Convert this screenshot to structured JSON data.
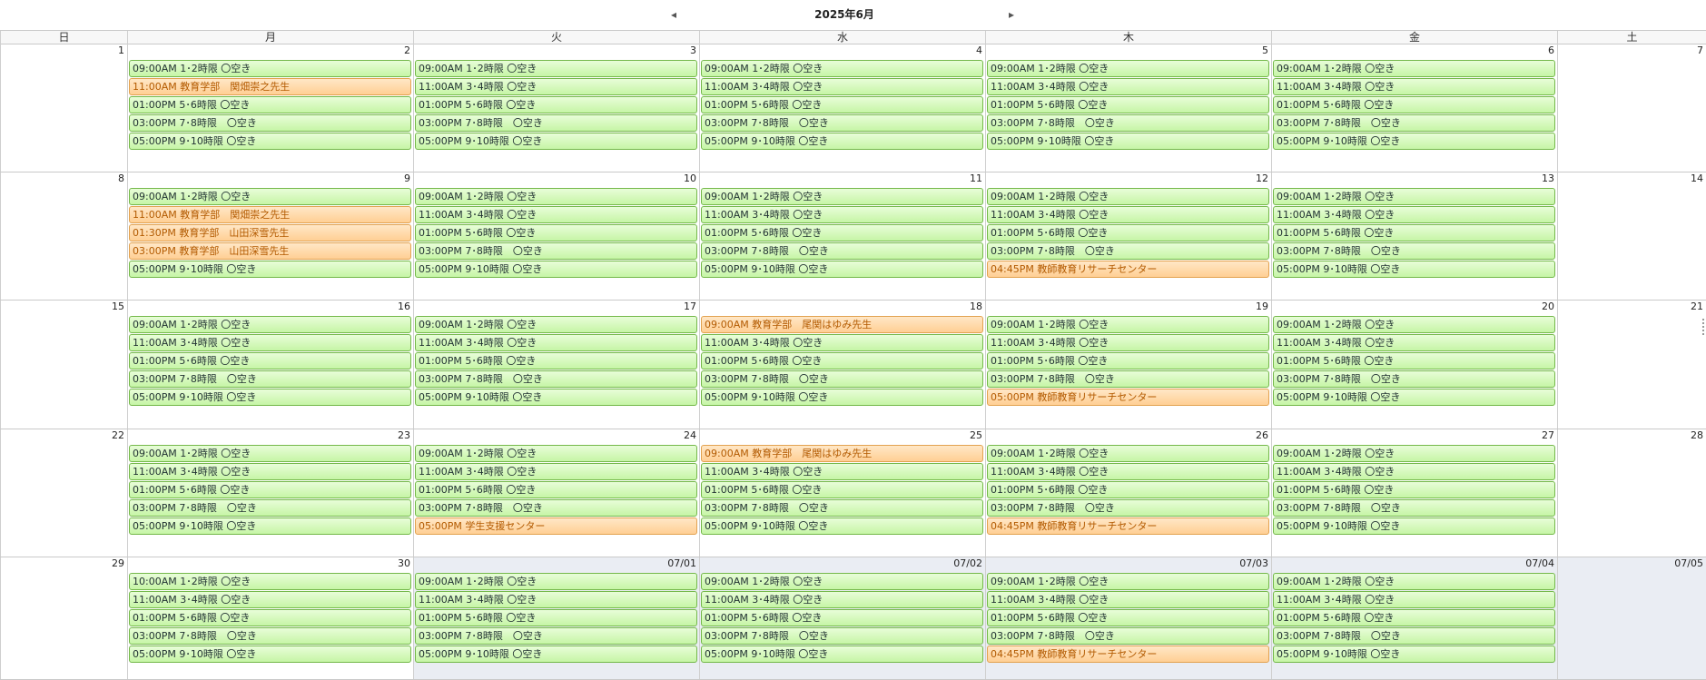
{
  "nav": {
    "title": "2025年6月",
    "prev_icon": "◂",
    "next_icon": "▸"
  },
  "weekdays": [
    "日",
    "月",
    "火",
    "水",
    "木",
    "金",
    "土"
  ],
  "weeks": [
    {
      "days": [
        {
          "num": "1",
          "events": []
        },
        {
          "num": "2",
          "events": [
            {
              "text": "09:00AM 1･2時限 〇空き",
              "color": "green"
            },
            {
              "text": "11:00AM 教育学部　関畑崇之先生",
              "color": "orange"
            },
            {
              "text": "01:00PM 5･6時限 〇空き",
              "color": "green"
            },
            {
              "text": "03:00PM 7･8時限　〇空き",
              "color": "green"
            },
            {
              "text": "05:00PM 9･10時限 〇空き",
              "color": "green"
            }
          ]
        },
        {
          "num": "3",
          "events": [
            {
              "text": "09:00AM 1･2時限 〇空き",
              "color": "green"
            },
            {
              "text": "11:00AM 3･4時限 〇空き",
              "color": "green"
            },
            {
              "text": "01:00PM 5･6時限 〇空き",
              "color": "green"
            },
            {
              "text": "03:00PM 7･8時限　〇空き",
              "color": "green"
            },
            {
              "text": "05:00PM 9･10時限 〇空き",
              "color": "green"
            }
          ]
        },
        {
          "num": "4",
          "events": [
            {
              "text": "09:00AM 1･2時限 〇空き",
              "color": "green"
            },
            {
              "text": "11:00AM 3･4時限 〇空き",
              "color": "green"
            },
            {
              "text": "01:00PM 5･6時限 〇空き",
              "color": "green"
            },
            {
              "text": "03:00PM 7･8時限　〇空き",
              "color": "green"
            },
            {
              "text": "05:00PM 9･10時限 〇空き",
              "color": "green"
            }
          ]
        },
        {
          "num": "5",
          "events": [
            {
              "text": "09:00AM 1･2時限 〇空き",
              "color": "green"
            },
            {
              "text": "11:00AM 3･4時限 〇空き",
              "color": "green"
            },
            {
              "text": "01:00PM 5･6時限 〇空き",
              "color": "green"
            },
            {
              "text": "03:00PM 7･8時限　〇空き",
              "color": "green"
            },
            {
              "text": "05:00PM 9･10時限 〇空き",
              "color": "green"
            }
          ]
        },
        {
          "num": "6",
          "events": [
            {
              "text": "09:00AM 1･2時限 〇空き",
              "color": "green"
            },
            {
              "text": "11:00AM 3･4時限 〇空き",
              "color": "green"
            },
            {
              "text": "01:00PM 5･6時限 〇空き",
              "color": "green"
            },
            {
              "text": "03:00PM 7･8時限　〇空き",
              "color": "green"
            },
            {
              "text": "05:00PM 9･10時限 〇空き",
              "color": "green"
            }
          ]
        },
        {
          "num": "7",
          "events": []
        }
      ]
    },
    {
      "days": [
        {
          "num": "8",
          "events": []
        },
        {
          "num": "9",
          "events": [
            {
              "text": "09:00AM 1･2時限 〇空き",
              "color": "green"
            },
            {
              "text": "11:00AM 教育学部　関畑崇之先生",
              "color": "orange"
            },
            {
              "text": "01:30PM 教育学部　山田深雪先生",
              "color": "orange"
            },
            {
              "text": "03:00PM 教育学部　山田深雪先生",
              "color": "orange"
            },
            {
              "text": "05:00PM 9･10時限 〇空き",
              "color": "green"
            }
          ]
        },
        {
          "num": "10",
          "events": [
            {
              "text": "09:00AM 1･2時限 〇空き",
              "color": "green"
            },
            {
              "text": "11:00AM 3･4時限 〇空き",
              "color": "green"
            },
            {
              "text": "01:00PM 5･6時限 〇空き",
              "color": "green"
            },
            {
              "text": "03:00PM 7･8時限　〇空き",
              "color": "green"
            },
            {
              "text": "05:00PM 9･10時限 〇空き",
              "color": "green"
            }
          ]
        },
        {
          "num": "11",
          "events": [
            {
              "text": "09:00AM 1･2時限 〇空き",
              "color": "green"
            },
            {
              "text": "11:00AM 3･4時限 〇空き",
              "color": "green"
            },
            {
              "text": "01:00PM 5･6時限 〇空き",
              "color": "green"
            },
            {
              "text": "03:00PM 7･8時限　〇空き",
              "color": "green"
            },
            {
              "text": "05:00PM 9･10時限 〇空き",
              "color": "green"
            }
          ]
        },
        {
          "num": "12",
          "events": [
            {
              "text": "09:00AM 1･2時限 〇空き",
              "color": "green"
            },
            {
              "text": "11:00AM 3･4時限 〇空き",
              "color": "green"
            },
            {
              "text": "01:00PM 5･6時限 〇空き",
              "color": "green"
            },
            {
              "text": "03:00PM 7･8時限　〇空き",
              "color": "green"
            },
            {
              "text": "04:45PM 教師教育リサーチセンター",
              "color": "orange"
            }
          ]
        },
        {
          "num": "13",
          "events": [
            {
              "text": "09:00AM 1･2時限 〇空き",
              "color": "green"
            },
            {
              "text": "11:00AM 3･4時限 〇空き",
              "color": "green"
            },
            {
              "text": "01:00PM 5･6時限 〇空き",
              "color": "green"
            },
            {
              "text": "03:00PM 7･8時限　〇空き",
              "color": "green"
            },
            {
              "text": "05:00PM 9･10時限 〇空き",
              "color": "green"
            }
          ]
        },
        {
          "num": "14",
          "events": []
        }
      ]
    },
    {
      "days": [
        {
          "num": "15",
          "events": []
        },
        {
          "num": "16",
          "events": [
            {
              "text": "09:00AM 1･2時限 〇空き",
              "color": "green"
            },
            {
              "text": "11:00AM 3･4時限 〇空き",
              "color": "green"
            },
            {
              "text": "01:00PM 5･6時限 〇空き",
              "color": "green"
            },
            {
              "text": "03:00PM 7･8時限　〇空き",
              "color": "green"
            },
            {
              "text": "05:00PM 9･10時限 〇空き",
              "color": "green"
            }
          ]
        },
        {
          "num": "17",
          "events": [
            {
              "text": "09:00AM 1･2時限 〇空き",
              "color": "green"
            },
            {
              "text": "11:00AM 3･4時限 〇空き",
              "color": "green"
            },
            {
              "text": "01:00PM 5･6時限 〇空き",
              "color": "green"
            },
            {
              "text": "03:00PM 7･8時限　〇空き",
              "color": "green"
            },
            {
              "text": "05:00PM 9･10時限 〇空き",
              "color": "green"
            }
          ]
        },
        {
          "num": "18",
          "events": [
            {
              "text": "09:00AM 教育学部　尾関はゆみ先生",
              "color": "orange"
            },
            {
              "text": "11:00AM 3･4時限 〇空き",
              "color": "green"
            },
            {
              "text": "01:00PM 5･6時限 〇空き",
              "color": "green"
            },
            {
              "text": "03:00PM 7･8時限　〇空き",
              "color": "green"
            },
            {
              "text": "05:00PM 9･10時限 〇空き",
              "color": "green"
            }
          ]
        },
        {
          "num": "19",
          "events": [
            {
              "text": "09:00AM 1･2時限 〇空き",
              "color": "green"
            },
            {
              "text": "11:00AM 3･4時限 〇空き",
              "color": "green"
            },
            {
              "text": "01:00PM 5･6時限 〇空き",
              "color": "green"
            },
            {
              "text": "03:00PM 7･8時限　〇空き",
              "color": "green"
            },
            {
              "text": "05:00PM 教師教育リサーチセンター",
              "color": "orange"
            }
          ]
        },
        {
          "num": "20",
          "events": [
            {
              "text": "09:00AM 1･2時限 〇空き",
              "color": "green"
            },
            {
              "text": "11:00AM 3･4時限 〇空き",
              "color": "green"
            },
            {
              "text": "01:00PM 5･6時限 〇空き",
              "color": "green"
            },
            {
              "text": "03:00PM 7･8時限　〇空き",
              "color": "green"
            },
            {
              "text": "05:00PM 9･10時限 〇空き",
              "color": "green"
            }
          ]
        },
        {
          "num": "21",
          "events": []
        }
      ]
    },
    {
      "days": [
        {
          "num": "22",
          "events": []
        },
        {
          "num": "23",
          "events": [
            {
              "text": "09:00AM 1･2時限 〇空き",
              "color": "green"
            },
            {
              "text": "11:00AM 3･4時限 〇空き",
              "color": "green"
            },
            {
              "text": "01:00PM 5･6時限 〇空き",
              "color": "green"
            },
            {
              "text": "03:00PM 7･8時限　〇空き",
              "color": "green"
            },
            {
              "text": "05:00PM 9･10時限 〇空き",
              "color": "green"
            }
          ]
        },
        {
          "num": "24",
          "events": [
            {
              "text": "09:00AM 1･2時限 〇空き",
              "color": "green"
            },
            {
              "text": "11:00AM 3･4時限 〇空き",
              "color": "green"
            },
            {
              "text": "01:00PM 5･6時限 〇空き",
              "color": "green"
            },
            {
              "text": "03:00PM 7･8時限　〇空き",
              "color": "green"
            },
            {
              "text": "05:00PM 学生支援センター",
              "color": "orange"
            }
          ]
        },
        {
          "num": "25",
          "events": [
            {
              "text": "09:00AM 教育学部　尾関はゆみ先生",
              "color": "orange"
            },
            {
              "text": "11:00AM 3･4時限 〇空き",
              "color": "green"
            },
            {
              "text": "01:00PM 5･6時限 〇空き",
              "color": "green"
            },
            {
              "text": "03:00PM 7･8時限　〇空き",
              "color": "green"
            },
            {
              "text": "05:00PM 9･10時限 〇空き",
              "color": "green"
            }
          ]
        },
        {
          "num": "26",
          "events": [
            {
              "text": "09:00AM 1･2時限 〇空き",
              "color": "green"
            },
            {
              "text": "11:00AM 3･4時限 〇空き",
              "color": "green"
            },
            {
              "text": "01:00PM 5･6時限 〇空き",
              "color": "green"
            },
            {
              "text": "03:00PM 7･8時限　〇空き",
              "color": "green"
            },
            {
              "text": "04:45PM 教師教育リサーチセンター",
              "color": "orange"
            }
          ]
        },
        {
          "num": "27",
          "events": [
            {
              "text": "09:00AM 1･2時限 〇空き",
              "color": "green"
            },
            {
              "text": "11:00AM 3･4時限 〇空き",
              "color": "green"
            },
            {
              "text": "01:00PM 5･6時限 〇空き",
              "color": "green"
            },
            {
              "text": "03:00PM 7･8時限　〇空き",
              "color": "green"
            },
            {
              "text": "05:00PM 9･10時限 〇空き",
              "color": "green"
            }
          ]
        },
        {
          "num": "28",
          "events": []
        }
      ]
    },
    {
      "days": [
        {
          "num": "29",
          "events": []
        },
        {
          "num": "30",
          "events": [
            {
              "text": "10:00AM 1･2時限 〇空き",
              "color": "green"
            },
            {
              "text": "11:00AM 3･4時限 〇空き",
              "color": "green"
            },
            {
              "text": "01:00PM 5･6時限 〇空き",
              "color": "green"
            },
            {
              "text": "03:00PM 7･8時限　〇空き",
              "color": "green"
            },
            {
              "text": "05:00PM 9･10時限 〇空き",
              "color": "green"
            }
          ]
        },
        {
          "num": "07/01",
          "other": true,
          "events": [
            {
              "text": "09:00AM 1･2時限 〇空き",
              "color": "green"
            },
            {
              "text": "11:00AM 3･4時限 〇空き",
              "color": "green"
            },
            {
              "text": "01:00PM 5･6時限 〇空き",
              "color": "green"
            },
            {
              "text": "03:00PM 7･8時限　〇空き",
              "color": "green"
            },
            {
              "text": "05:00PM 9･10時限 〇空き",
              "color": "green"
            }
          ]
        },
        {
          "num": "07/02",
          "other": true,
          "events": [
            {
              "text": "09:00AM 1･2時限 〇空き",
              "color": "green"
            },
            {
              "text": "11:00AM 3･4時限 〇空き",
              "color": "green"
            },
            {
              "text": "01:00PM 5･6時限 〇空き",
              "color": "green"
            },
            {
              "text": "03:00PM 7･8時限　〇空き",
              "color": "green"
            },
            {
              "text": "05:00PM 9･10時限 〇空き",
              "color": "green"
            }
          ]
        },
        {
          "num": "07/03",
          "other": true,
          "events": [
            {
              "text": "09:00AM 1･2時限 〇空き",
              "color": "green"
            },
            {
              "text": "11:00AM 3･4時限 〇空き",
              "color": "green"
            },
            {
              "text": "01:00PM 5･6時限 〇空き",
              "color": "green"
            },
            {
              "text": "03:00PM 7･8時限　〇空き",
              "color": "green"
            },
            {
              "text": "04:45PM 教師教育リサーチセンター",
              "color": "orange"
            }
          ]
        },
        {
          "num": "07/04",
          "other": true,
          "events": [
            {
              "text": "09:00AM 1･2時限 〇空き",
              "color": "green"
            },
            {
              "text": "11:00AM 3･4時限 〇空き",
              "color": "green"
            },
            {
              "text": "01:00PM 5･6時限 〇空き",
              "color": "green"
            },
            {
              "text": "03:00PM 7･8時限　〇空き",
              "color": "green"
            },
            {
              "text": "05:00PM 9･10時限 〇空き",
              "color": "green"
            }
          ]
        },
        {
          "num": "07/05",
          "other": true,
          "events": []
        }
      ]
    }
  ]
}
